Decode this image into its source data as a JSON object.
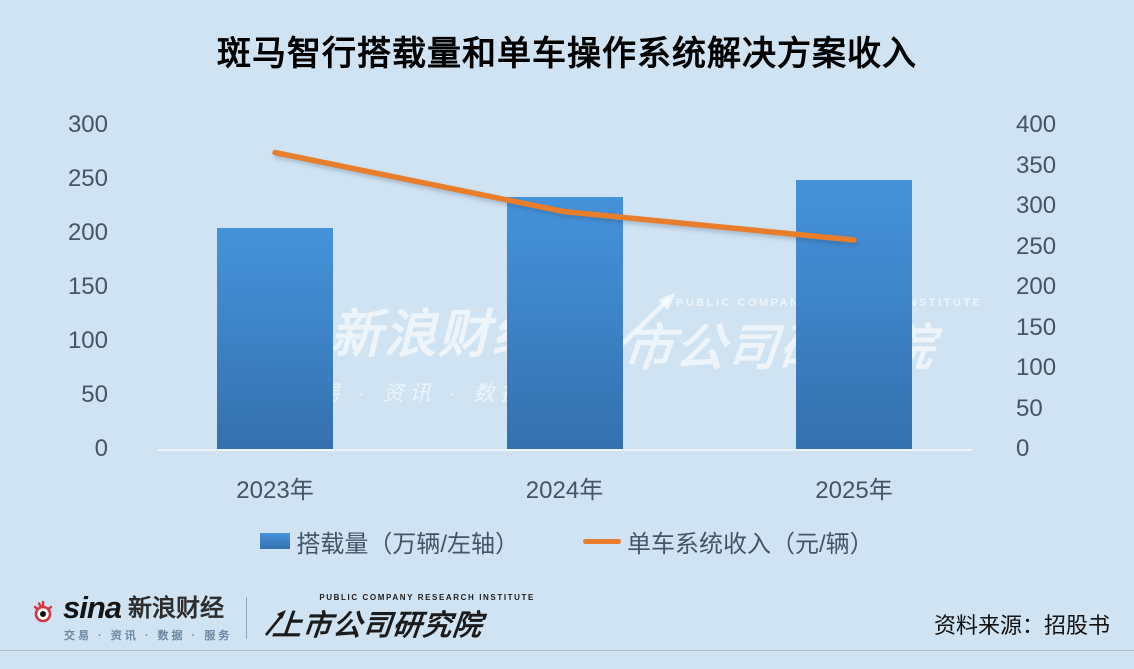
{
  "title": "斑马智行搭载量和单车操作系统解决方案收入",
  "chart_data": {
    "type": "combo",
    "categories": [
      "2023年",
      "2024年",
      "2025年"
    ],
    "series": [
      {
        "name": "搭载量（万辆/左轴）",
        "type": "bar",
        "axis": "left",
        "values": [
          205,
          233,
          249
        ],
        "color": "#3E84C8"
      },
      {
        "name": "单车系统收入（元/辆）",
        "type": "line",
        "axis": "right",
        "values": [
          366,
          293,
          258
        ],
        "color": "#E87E2B"
      }
    ],
    "left_axis": {
      "min": 0,
      "max": 300,
      "step": 50,
      "ticks": [
        "300",
        "250",
        "200",
        "150",
        "100",
        "50",
        "0"
      ]
    },
    "right_axis": {
      "min": 0,
      "max": 400,
      "step": 50,
      "ticks": [
        "400",
        "350",
        "300",
        "250",
        "200",
        "150",
        "100",
        "50",
        "0"
      ]
    },
    "grid": false,
    "legend_position": "bottom"
  },
  "legend": {
    "bar_label": "搭载量（万辆/左轴）",
    "line_label": "单车系统收入（元/辆）"
  },
  "watermarks": {
    "sina_main": "新浪财经",
    "sina_sub": "交易 · 资讯 · 数据 · 服务",
    "pcri_cn": "上市公司研究院",
    "pcri_en": "PUBLIC COMPANY RESEARCH INSTITUTE"
  },
  "footer": {
    "sina_word": "sina",
    "sina_cn": "新浪财经",
    "sina_sub": "交易 · 资讯 · 数据 · 服务",
    "pcri_en": "PUBLIC COMPANY RESEARCH INSTITUTE",
    "pcri_cn": "上市公司研究院",
    "source": "资料来源：招股书"
  },
  "colors": {
    "background": "#CFE3F2",
    "bar_top": "#4592DA",
    "bar_bottom": "#3470AD",
    "line": "#E87E2B",
    "axis_text": "#44546A",
    "title_text": "#000000"
  }
}
